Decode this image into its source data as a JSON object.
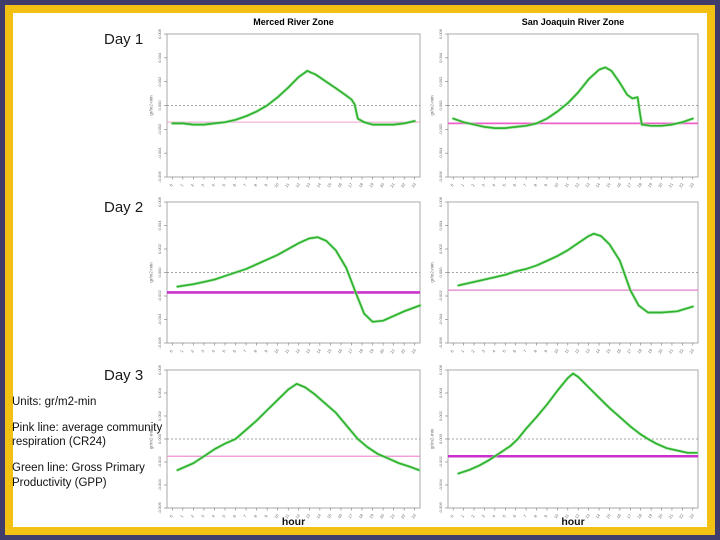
{
  "column_titles": [
    "Merced River Zone",
    "San Joaquin River Zone"
  ],
  "row_labels": [
    "Day 1",
    "Day 2",
    "Day 3"
  ],
  "notes": {
    "units": "Units: gr/m2-min",
    "pink": "Pink line: average community respiration (CR24)",
    "green": "Green line: Gross Primary Productivity (GPP)"
  },
  "xlabel": "hour",
  "colors": {
    "gpp_green": "#2db32d",
    "gpp_green_halo": "#9fe09f",
    "frame_navy": "#403c6b",
    "frame_gold": "#f2c114",
    "grid_gray": "#888888",
    "axis_gray": "#a0a0a0"
  },
  "chart_data": [
    {
      "type": "line",
      "id": "day1-merced",
      "day": "Day 1",
      "zone": "Merced River Zone",
      "xlabel": "hour",
      "ylabel": "gr/m2-min",
      "xlim": [
        0,
        24
      ],
      "ylim": [
        -0.006,
        0.006
      ],
      "x_ticks": [
        0,
        1,
        2,
        3,
        4,
        5,
        6,
        7,
        8,
        9,
        10,
        11,
        12,
        13,
        14,
        15,
        16,
        17,
        18,
        19,
        20,
        21,
        22,
        23
      ],
      "y_ticks": [
        0.006,
        0.004,
        0.002,
        0.0,
        -0.002,
        -0.004,
        -0.006
      ],
      "zero_line": 0,
      "cr24": -0.0014,
      "cr24_color": "#f2a0cc",
      "cr24_width": 1.0,
      "gpp_points": [
        [
          0,
          -0.0015
        ],
        [
          1,
          -0.0015
        ],
        [
          2,
          -0.0016
        ],
        [
          3,
          -0.0016
        ],
        [
          4,
          -0.0015
        ],
        [
          5,
          -0.0014
        ],
        [
          6,
          -0.0012
        ],
        [
          7,
          -0.0009
        ],
        [
          8,
          -0.0005
        ],
        [
          9,
          0.0
        ],
        [
          10,
          0.0007
        ],
        [
          11,
          0.0015
        ],
        [
          12,
          0.0024
        ],
        [
          12.8,
          0.0029
        ],
        [
          13.6,
          0.0026
        ],
        [
          14.6,
          0.002
        ],
        [
          15.6,
          0.0014
        ],
        [
          16.4,
          0.0009
        ],
        [
          17.0,
          0.0005
        ],
        [
          17.3,
          0.0001
        ],
        [
          17.6,
          -0.0011
        ],
        [
          18.2,
          -0.0014
        ],
        [
          19,
          -0.0016
        ],
        [
          20,
          -0.0016
        ],
        [
          21,
          -0.0016
        ],
        [
          22,
          -0.0015
        ],
        [
          23,
          -0.0013
        ]
      ]
    },
    {
      "type": "line",
      "id": "day1-sanjoaquin",
      "day": "Day 1",
      "zone": "San Joaquin River Zone",
      "xlabel": "hour",
      "ylabel": "gr/m2-min",
      "xlim": [
        0,
        24
      ],
      "ylim": [
        -0.006,
        0.006
      ],
      "x_ticks": [
        0,
        1,
        2,
        3,
        4,
        5,
        6,
        7,
        8,
        9,
        10,
        11,
        12,
        13,
        14,
        15,
        16,
        17,
        18,
        19,
        20,
        21,
        22,
        23
      ],
      "y_ticks": [
        0.006,
        0.004,
        0.002,
        0.0,
        -0.002,
        -0.004,
        -0.006
      ],
      "zero_line": 0,
      "cr24": -0.0015,
      "cr24_color": "#ee5fc8",
      "cr24_width": 1.8,
      "gpp_points": [
        [
          0,
          -0.0011
        ],
        [
          1,
          -0.0014
        ],
        [
          2,
          -0.0016
        ],
        [
          3,
          -0.0018
        ],
        [
          4,
          -0.0019
        ],
        [
          5,
          -0.0019
        ],
        [
          6,
          -0.0018
        ],
        [
          7,
          -0.0017
        ],
        [
          8,
          -0.0015
        ],
        [
          9,
          -0.0011
        ],
        [
          10,
          -0.0005
        ],
        [
          11,
          0.0002
        ],
        [
          12,
          0.0011
        ],
        [
          13,
          0.0022
        ],
        [
          14,
          0.003
        ],
        [
          14.6,
          0.0032
        ],
        [
          15.2,
          0.0029
        ],
        [
          16,
          0.0019
        ],
        [
          16.7,
          0.0009
        ],
        [
          17.2,
          0.0006
        ],
        [
          17.7,
          0.0007
        ],
        [
          17.9,
          -0.0005
        ],
        [
          18.1,
          -0.0016
        ],
        [
          19,
          -0.0017
        ],
        [
          20,
          -0.0017
        ],
        [
          21,
          -0.0016
        ],
        [
          22,
          -0.0014
        ],
        [
          23,
          -0.0011
        ]
      ]
    },
    {
      "type": "line",
      "id": "day2-merced",
      "day": "Day 2",
      "zone": "Merced River Zone",
      "xlabel": "hour",
      "ylabel": "gr/m2-min",
      "xlim": [
        0,
        24
      ],
      "ylim": [
        -0.006,
        0.006
      ],
      "x_ticks": [
        0,
        1,
        2,
        3,
        4,
        5,
        6,
        7,
        8,
        9,
        10,
        11,
        12,
        13,
        14,
        15,
        16,
        17,
        18,
        19,
        20,
        21,
        22,
        23
      ],
      "y_ticks": [
        0.006,
        0.004,
        0.002,
        0.0,
        -0.002,
        -0.004,
        -0.006
      ],
      "zero_line": 0,
      "cr24": -0.0017,
      "cr24_color": "#cc33cc",
      "cr24_width": 2.6,
      "gpp_points": [
        [
          0.5,
          -0.0012
        ],
        [
          2,
          -0.001
        ],
        [
          3,
          -0.0008
        ],
        [
          4,
          -0.0006
        ],
        [
          5,
          -0.0003
        ],
        [
          6,
          0.0
        ],
        [
          7,
          0.0003
        ],
        [
          8,
          0.0007
        ],
        [
          9,
          0.0011
        ],
        [
          10,
          0.0015
        ],
        [
          11,
          0.002
        ],
        [
          12,
          0.0025
        ],
        [
          13,
          0.0029
        ],
        [
          13.8,
          0.003
        ],
        [
          14.6,
          0.0027
        ],
        [
          15.5,
          0.0019
        ],
        [
          16.5,
          0.0004
        ],
        [
          17.4,
          -0.0017
        ],
        [
          18.2,
          -0.0035
        ],
        [
          19,
          -0.0042
        ],
        [
          20,
          -0.0041
        ],
        [
          21,
          -0.0037
        ],
        [
          22,
          -0.0033
        ],
        [
          23.5,
          -0.0028
        ]
      ]
    },
    {
      "type": "line",
      "id": "day2-sanjoaquin",
      "day": "Day 2",
      "zone": "San Joaquin River Zone",
      "xlabel": "hour",
      "ylabel": "gr/m2-min",
      "xlim": [
        0,
        24
      ],
      "ylim": [
        -0.006,
        0.006
      ],
      "x_ticks": [
        0,
        1,
        2,
        3,
        4,
        5,
        6,
        7,
        8,
        9,
        10,
        11,
        12,
        13,
        14,
        15,
        16,
        17,
        18,
        19,
        20,
        21,
        22,
        23
      ],
      "y_ticks": [
        0.006,
        0.004,
        0.002,
        0.0,
        -0.002,
        -0.004,
        -0.006
      ],
      "zero_line": 0,
      "cr24": -0.0015,
      "cr24_color": "#e87fc8",
      "cr24_width": 1.2,
      "gpp_points": [
        [
          0.5,
          -0.0011
        ],
        [
          2,
          -0.0008
        ],
        [
          3,
          -0.0006
        ],
        [
          4,
          -0.0004
        ],
        [
          5,
          -0.0002
        ],
        [
          6,
          0.0001
        ],
        [
          7,
          0.0003
        ],
        [
          8,
          0.0006
        ],
        [
          9,
          0.001
        ],
        [
          10,
          0.0014
        ],
        [
          11,
          0.0019
        ],
        [
          12,
          0.0025
        ],
        [
          13,
          0.0031
        ],
        [
          13.5,
          0.0033
        ],
        [
          14.2,
          0.0031
        ],
        [
          15,
          0.0024
        ],
        [
          16,
          0.001
        ],
        [
          17,
          -0.0015
        ],
        [
          17.8,
          -0.0028
        ],
        [
          18.7,
          -0.0034
        ],
        [
          20,
          -0.0034
        ],
        [
          21.5,
          -0.0033
        ],
        [
          23,
          -0.0029
        ]
      ]
    },
    {
      "type": "line",
      "id": "day3-merced",
      "day": "Day 3",
      "zone": "Merced River Zone",
      "xlabel": "hour",
      "ylabel": "gr/m2-min",
      "xlim": [
        0,
        24
      ],
      "ylim": [
        -0.006,
        0.006
      ],
      "x_ticks": [
        0,
        1,
        2,
        3,
        4,
        5,
        6,
        7,
        8,
        9,
        10,
        11,
        12,
        13,
        14,
        15,
        16,
        17,
        18,
        19,
        20,
        21,
        22,
        23
      ],
      "y_ticks": [
        0.006,
        0.004,
        0.002,
        0.0,
        -0.002,
        -0.004,
        -0.006
      ],
      "zero_line": 0,
      "cr24": -0.0015,
      "cr24_color": "#ee8fd2",
      "cr24_width": 1.2,
      "gpp_points": [
        [
          0.5,
          -0.0027
        ],
        [
          2,
          -0.0021
        ],
        [
          3,
          -0.0015
        ],
        [
          4,
          -0.0009
        ],
        [
          5,
          -0.0004
        ],
        [
          6,
          0.0
        ],
        [
          7,
          0.0008
        ],
        [
          8,
          0.0016
        ],
        [
          9,
          0.0025
        ],
        [
          10,
          0.0034
        ],
        [
          11,
          0.0043
        ],
        [
          11.8,
          0.0048
        ],
        [
          12.6,
          0.0045
        ],
        [
          13.5,
          0.0039
        ],
        [
          14.5,
          0.0031
        ],
        [
          15.5,
          0.0023
        ],
        [
          16.5,
          0.0012
        ],
        [
          17.6,
          0.0
        ],
        [
          18.5,
          -0.0007
        ],
        [
          19.5,
          -0.0013
        ],
        [
          20.5,
          -0.0017
        ],
        [
          21.5,
          -0.0021
        ],
        [
          22.5,
          -0.0024
        ],
        [
          23.4,
          -0.0027
        ]
      ]
    },
    {
      "type": "line",
      "id": "day3-sanjoaquin",
      "day": "Day 3",
      "zone": "San Joaquin River Zone",
      "xlabel": "hour",
      "ylabel": "gr/m2-min",
      "xlim": [
        0,
        24
      ],
      "ylim": [
        -0.006,
        0.006
      ],
      "x_ticks": [
        0,
        1,
        2,
        3,
        4,
        5,
        6,
        7,
        8,
        9,
        10,
        11,
        12,
        13,
        14,
        15,
        16,
        17,
        18,
        19,
        20,
        21,
        22,
        23
      ],
      "y_ticks": [
        0.006,
        0.004,
        0.002,
        0.0,
        -0.002,
        -0.004,
        -0.006
      ],
      "zero_line": 0,
      "cr24": -0.0015,
      "cr24_color": "#cb2ecb",
      "cr24_width": 2.4,
      "gpp_points": [
        [
          0.5,
          -0.003
        ],
        [
          1.5,
          -0.0027
        ],
        [
          2.5,
          -0.0023
        ],
        [
          3.5,
          -0.0018
        ],
        [
          4.5,
          -0.0012
        ],
        [
          5.5,
          -0.0006
        ],
        [
          6.2,
          0.0
        ],
        [
          7,
          0.0009
        ],
        [
          8,
          0.0019
        ],
        [
          9,
          0.003
        ],
        [
          10,
          0.0042
        ],
        [
          11,
          0.0053
        ],
        [
          11.5,
          0.0057
        ],
        [
          12,
          0.0054
        ],
        [
          13,
          0.0045
        ],
        [
          14,
          0.0036
        ],
        [
          15,
          0.0027
        ],
        [
          16,
          0.0019
        ],
        [
          17,
          0.0011
        ],
        [
          18,
          0.0004
        ],
        [
          18.7,
          0.0
        ],
        [
          19.5,
          -0.0004
        ],
        [
          20.5,
          -0.0008
        ],
        [
          21.5,
          -0.001
        ],
        [
          22.5,
          -0.0012
        ],
        [
          23.4,
          -0.0012
        ]
      ]
    }
  ]
}
